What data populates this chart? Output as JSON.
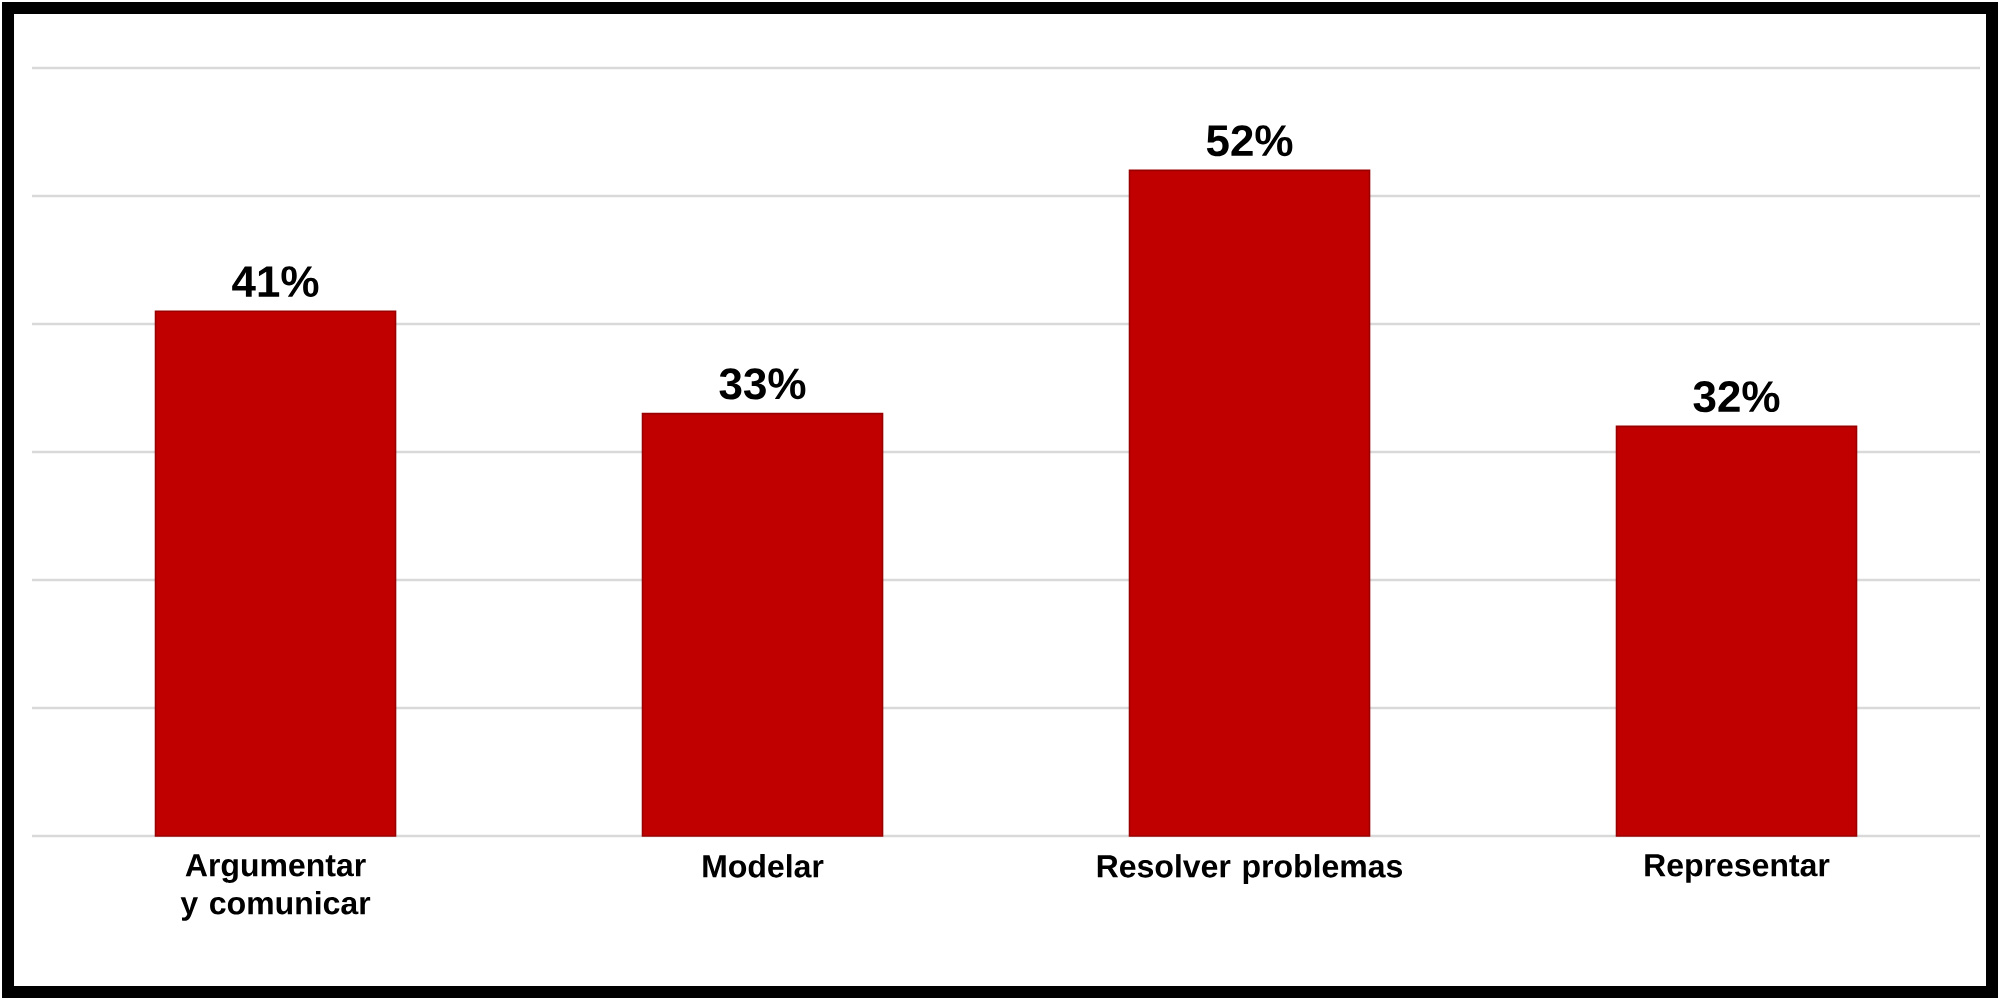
{
  "chart_data": {
    "type": "bar",
    "categories": [
      "Argumentar y comunicar",
      "Modelar",
      "Resolver problemas",
      "Representar"
    ],
    "values": [
      41,
      33,
      52,
      32
    ],
    "value_labels": [
      "41%",
      "33%",
      "52%",
      "32%"
    ],
    "color": "#c00000",
    "ylim": [
      0,
      60
    ],
    "yticks": [
      {
        "value": 0,
        "label": null
      },
      {
        "value": 10,
        "label": null
      },
      {
        "value": 20,
        "label": null
      },
      {
        "value": 30,
        "label": null
      },
      {
        "value": 40,
        "label": null
      },
      {
        "value": 50,
        "label": null
      },
      {
        "value": 60,
        "label": null
      }
    ],
    "tick_labels": "x",
    "grid": "y"
  }
}
